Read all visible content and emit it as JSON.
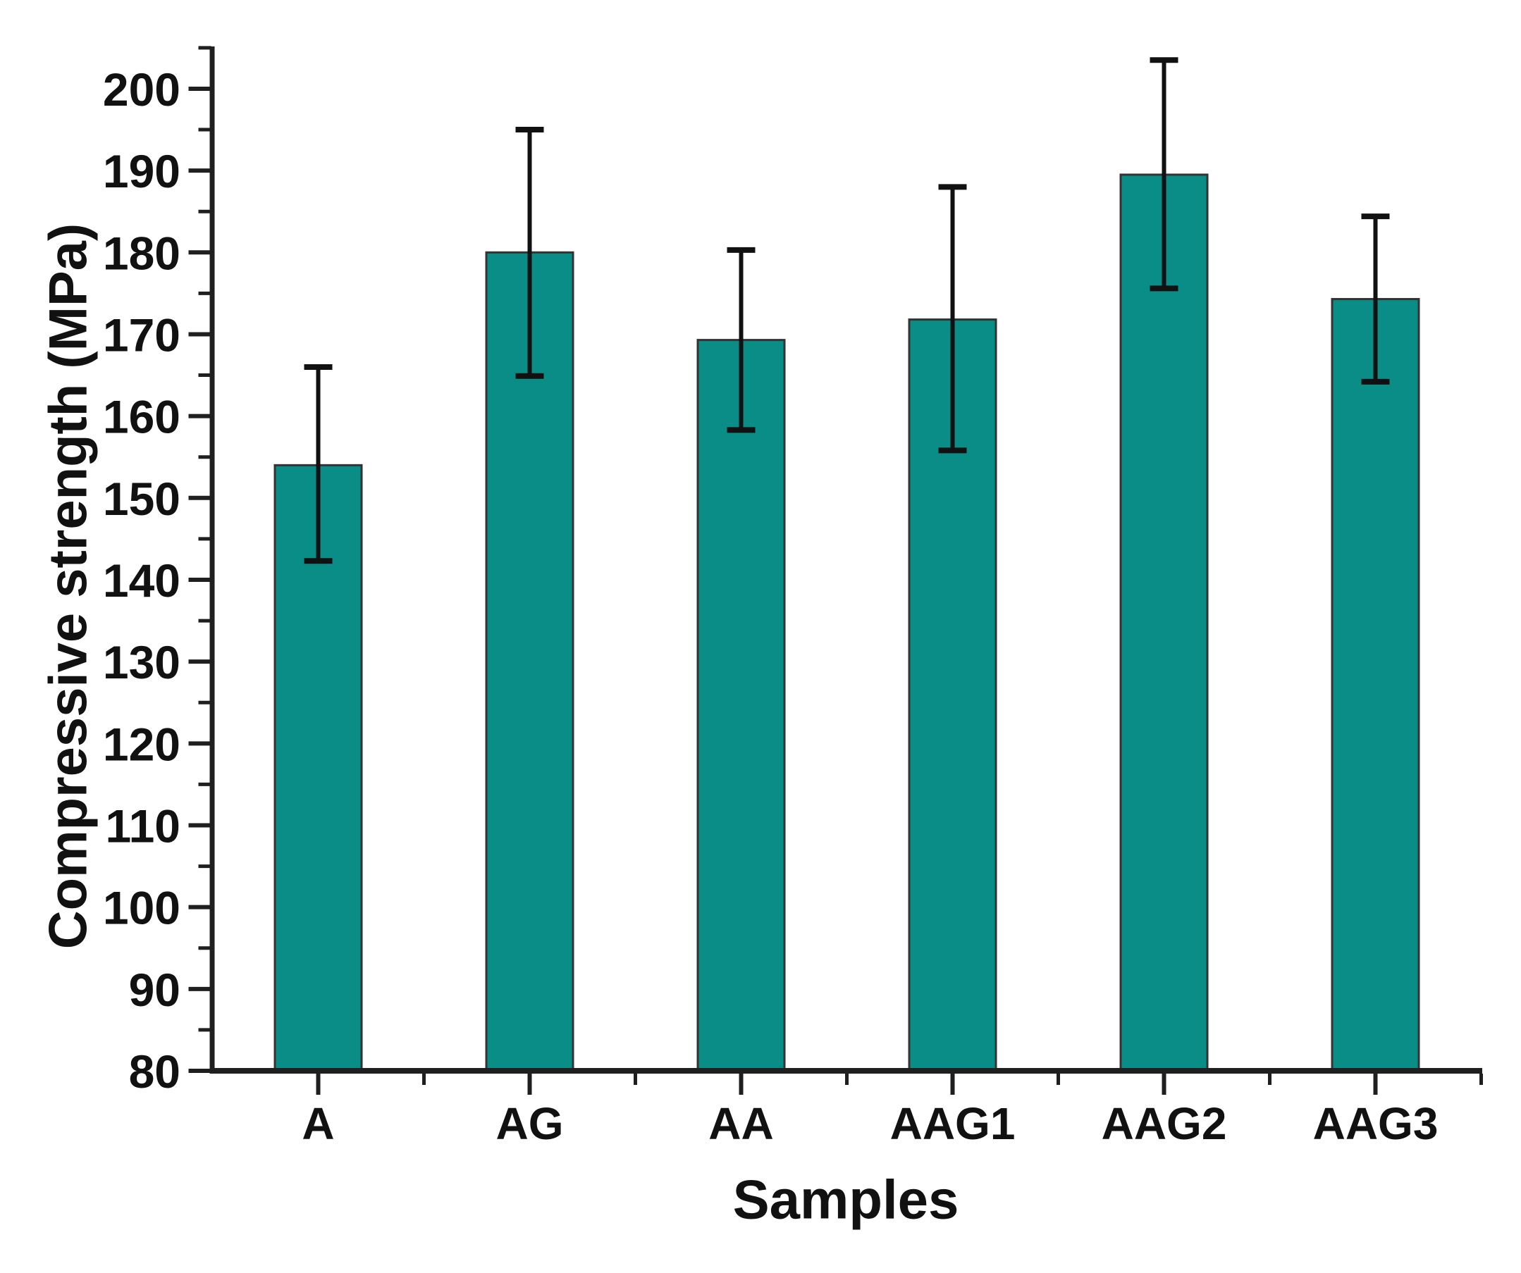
{
  "chart_data": {
    "type": "bar",
    "title": "",
    "xlabel": "Samples",
    "ylabel": "Compressive strength (MPa)",
    "categories": [
      "A",
      "AG",
      "AA",
      "AAG1",
      "AAG2",
      "AAG3"
    ],
    "values": [
      154.0,
      180.0,
      169.3,
      171.8,
      189.5,
      174.3
    ],
    "error_upper": [
      166.0,
      195.0,
      180.3,
      188.0,
      203.5,
      184.4
    ],
    "error_lower": [
      142.3,
      164.9,
      158.3,
      155.8,
      175.6,
      164.2
    ],
    "ylim": [
      80,
      205
    ],
    "yticks": [
      80,
      90,
      100,
      110,
      120,
      130,
      140,
      150,
      160,
      170,
      180,
      190,
      200
    ],
    "ytick_minor_step": 5,
    "grid": false,
    "legend": null,
    "bar_color": "#0a8c87",
    "bar_edge_color": "#333333",
    "axis_color": "#1f1f1f",
    "error_bar_color": "#111111",
    "text_color": "#111111"
  }
}
